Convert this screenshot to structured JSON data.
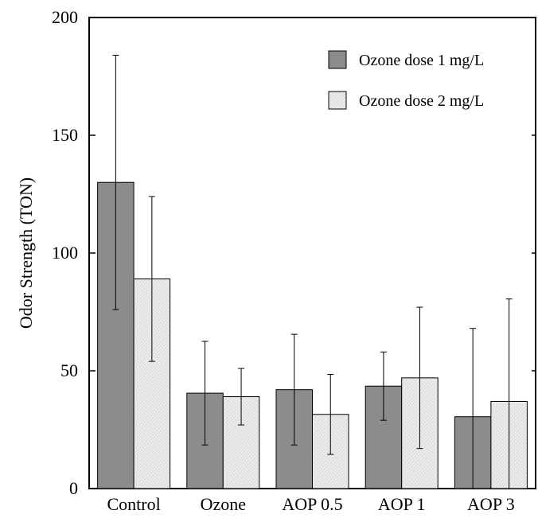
{
  "chart_data": {
    "type": "bar",
    "title": "",
    "xlabel": "",
    "ylabel": "Odor Strength (TON)",
    "ylim": [
      0,
      200
    ],
    "yticks": [
      0,
      50,
      100,
      150,
      200
    ],
    "categories": [
      "Control",
      "Ozone",
      "AOP 0.5",
      "AOP 1",
      "AOP 3"
    ],
    "series": [
      {
        "name": "Ozone dose 1 mg/L",
        "values": [
          130,
          40.5,
          42,
          43.5,
          30.5
        ],
        "error": [
          54,
          22,
          23.5,
          14.5,
          37.5
        ],
        "color": "#8c8c8c"
      },
      {
        "name": "Ozone dose 2 mg/L",
        "values": [
          89,
          39,
          31.5,
          47,
          37
        ],
        "error": [
          35,
          12,
          17,
          30,
          43.5
        ],
        "color": "#e6e6e6"
      }
    ],
    "legend_position": "top-right",
    "grid": false
  }
}
